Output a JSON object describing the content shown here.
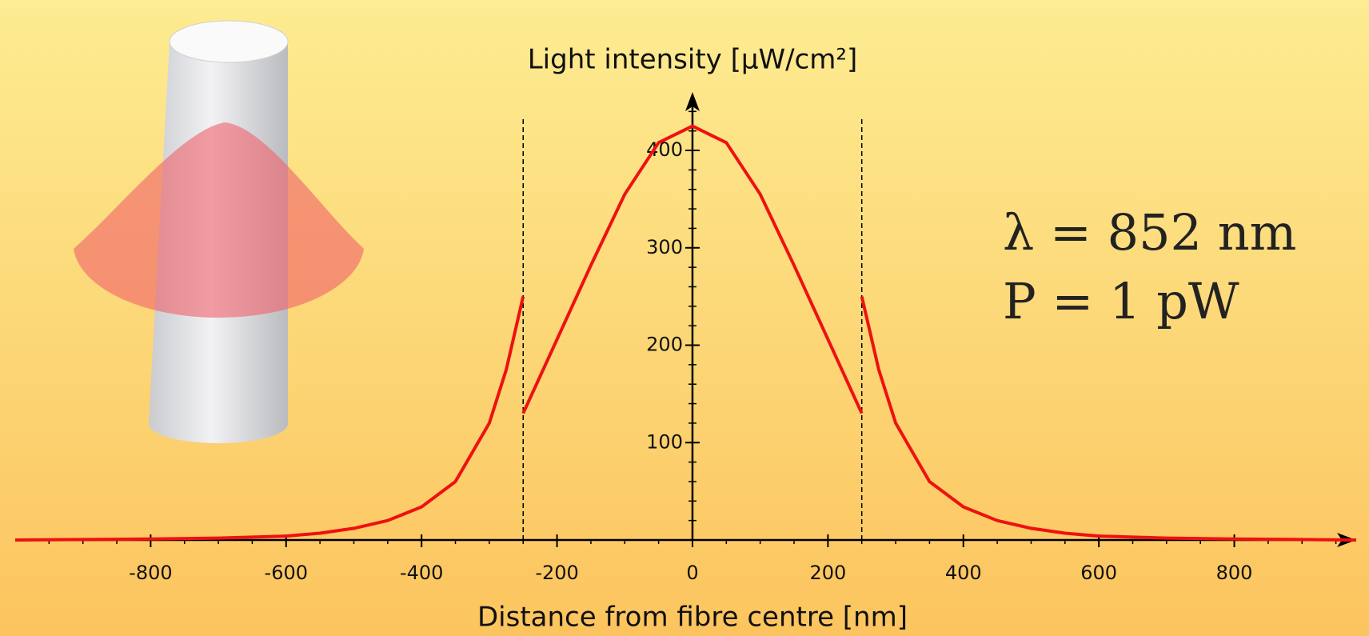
{
  "chart_data": {
    "type": "line",
    "x_label": "Distance from fibre centre [nm]",
    "y_label": "Light intensity [µW/cm²]",
    "annotations": [
      "λ = 852 nm",
      "P = 1 pW"
    ],
    "x": [
      -1000,
      -900,
      -800,
      -700,
      -600,
      -550,
      -500,
      -450,
      -400,
      -350,
      -300,
      -275,
      -250,
      -250,
      -250,
      -200,
      -150,
      -100,
      -50,
      0,
      50,
      100,
      150,
      200,
      250,
      250,
      250,
      275,
      300,
      350,
      400,
      450,
      500,
      550,
      600,
      700,
      800,
      900,
      980
    ],
    "values": [
      0,
      0.5,
      1,
      2,
      4,
      7,
      12,
      20,
      34,
      60,
      120,
      175,
      250,
      null,
      130,
      206,
      282,
      355,
      408,
      425,
      408,
      355,
      282,
      206,
      130,
      null,
      250,
      175,
      120,
      60,
      34,
      20,
      12,
      7,
      4,
      2,
      1,
      0.5,
      0
    ],
    "color": "#ee1111",
    "vlines": [
      -250,
      250
    ],
    "xlim": [
      -1000,
      980
    ],
    "ylim": [
      0,
      460
    ],
    "xticks": [
      -800,
      -600,
      -400,
      -200,
      0,
      200,
      400,
      600,
      800
    ],
    "yticks": [
      100,
      200,
      300,
      400
    ],
    "xminorticks": [
      -950,
      -900,
      -850,
      -750,
      -700,
      -650,
      -550,
      -500,
      -450,
      -350,
      -300,
      -250,
      -150,
      -100,
      -50,
      50,
      100,
      150,
      250,
      300,
      350,
      450,
      500,
      550,
      650,
      700,
      750,
      850,
      900,
      950
    ],
    "yminorticks": [
      20,
      40,
      60,
      80,
      120,
      140,
      160,
      180,
      220,
      240,
      260,
      280,
      320,
      340,
      360,
      380,
      420,
      440
    ]
  }
}
